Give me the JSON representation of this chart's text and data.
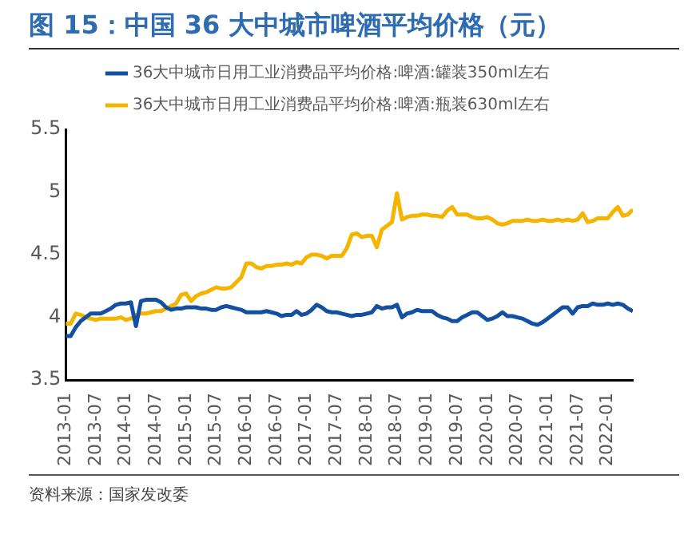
{
  "chart_data": {
    "type": "line",
    "title": "图 15：中国 36 大中城市啤酒平均价格（元）",
    "annotations": [
      "资料来源：国家发改委"
    ],
    "x": [
      "2013-01",
      "2013-02",
      "2013-03",
      "2013-04",
      "2013-05",
      "2013-06",
      "2013-07",
      "2013-08",
      "2013-09",
      "2013-10",
      "2013-11",
      "2013-12",
      "2014-01",
      "2014-02",
      "2014-03",
      "2014-04",
      "2014-05",
      "2014-06",
      "2014-07",
      "2014-08",
      "2014-09",
      "2014-10",
      "2014-11",
      "2014-12",
      "2015-01",
      "2015-02",
      "2015-03",
      "2015-04",
      "2015-05",
      "2015-06",
      "2015-07",
      "2015-08",
      "2015-09",
      "2015-10",
      "2015-11",
      "2015-12",
      "2016-01",
      "2016-02",
      "2016-03",
      "2016-04",
      "2016-05",
      "2016-06",
      "2016-07",
      "2016-08",
      "2016-09",
      "2016-10",
      "2016-11",
      "2016-12",
      "2017-01",
      "2017-02",
      "2017-03",
      "2017-04",
      "2017-05",
      "2017-06",
      "2017-07",
      "2017-08",
      "2017-09",
      "2017-10",
      "2017-11",
      "2017-12",
      "2018-01",
      "2018-02",
      "2018-03",
      "2018-04",
      "2018-05",
      "2018-06",
      "2018-07",
      "2018-08",
      "2018-09",
      "2018-10",
      "2018-11",
      "2018-12",
      "2019-01",
      "2019-02",
      "2019-03",
      "2019-04",
      "2019-05",
      "2019-06",
      "2019-07",
      "2019-08",
      "2019-09",
      "2019-10",
      "2019-11",
      "2019-12",
      "2020-01",
      "2020-02",
      "2020-03",
      "2020-04",
      "2020-05",
      "2020-06",
      "2020-07",
      "2020-08",
      "2020-09",
      "2020-10",
      "2020-11",
      "2020-12",
      "2021-01",
      "2021-02",
      "2021-03",
      "2021-04",
      "2021-05",
      "2021-06",
      "2021-07",
      "2021-08",
      "2021-09",
      "2021-10",
      "2021-11",
      "2021-12",
      "2022-01",
      "2022-02",
      "2022-03",
      "2022-04",
      "2022-05",
      "2022-06"
    ],
    "series": [
      {
        "name": "36大中城市日用工业消费品平均价格:啤酒:罐装350ml左右",
        "color": "#1450a0",
        "values": [
          3.85,
          3.85,
          3.92,
          3.97,
          4.0,
          4.03,
          4.03,
          4.03,
          4.05,
          4.07,
          4.1,
          4.11,
          4.11,
          4.12,
          3.93,
          4.13,
          4.14,
          4.14,
          4.14,
          4.12,
          4.08,
          4.06,
          4.07,
          4.07,
          4.08,
          4.08,
          4.08,
          4.07,
          4.07,
          4.06,
          4.06,
          4.08,
          4.09,
          4.08,
          4.07,
          4.06,
          4.04,
          4.04,
          4.04,
          4.04,
          4.05,
          4.04,
          4.03,
          4.01,
          4.02,
          4.02,
          4.05,
          4.02,
          4.03,
          4.06,
          4.1,
          4.08,
          4.05,
          4.04,
          4.04,
          4.03,
          4.02,
          4.01,
          4.02,
          4.02,
          4.03,
          4.04,
          4.09,
          4.07,
          4.08,
          4.08,
          4.1,
          4.0,
          4.03,
          4.04,
          4.06,
          4.05,
          4.05,
          4.05,
          4.02,
          4.0,
          3.99,
          3.97,
          3.97,
          4.0,
          4.02,
          4.04,
          4.04,
          4.01,
          3.98,
          3.99,
          4.01,
          4.04,
          4.01,
          4.01,
          4.0,
          3.99,
          3.97,
          3.95,
          3.94,
          3.96,
          3.99,
          4.02,
          4.05,
          4.08,
          4.08,
          4.03,
          4.08,
          4.09,
          4.09,
          4.11,
          4.1,
          4.1,
          4.11,
          4.1,
          4.11,
          4.1,
          4.07,
          4.05
        ]
      },
      {
        "name": "36大中城市日用工业消费品平均价格:啤酒:瓶装630ml左右",
        "color": "#f5b400",
        "values": [
          3.95,
          3.95,
          4.03,
          4.02,
          4.0,
          3.99,
          3.98,
          3.99,
          3.99,
          3.99,
          3.99,
          4.0,
          3.98,
          3.99,
          4.02,
          4.03,
          4.03,
          4.04,
          4.05,
          4.05,
          4.07,
          4.09,
          4.11,
          4.18,
          4.19,
          4.13,
          4.17,
          4.19,
          4.2,
          4.22,
          4.24,
          4.23,
          4.23,
          4.24,
          4.28,
          4.32,
          4.43,
          4.43,
          4.4,
          4.39,
          4.41,
          4.41,
          4.42,
          4.42,
          4.43,
          4.42,
          4.44,
          4.43,
          4.48,
          4.5,
          4.5,
          4.49,
          4.47,
          4.49,
          4.49,
          4.49,
          4.55,
          4.66,
          4.67,
          4.64,
          4.65,
          4.65,
          4.56,
          4.7,
          4.73,
          4.76,
          4.99,
          4.78,
          4.8,
          4.81,
          4.81,
          4.82,
          4.82,
          4.81,
          4.81,
          4.8,
          4.85,
          4.88,
          4.82,
          4.82,
          4.82,
          4.8,
          4.79,
          4.79,
          4.8,
          4.78,
          4.75,
          4.74,
          4.75,
          4.77,
          4.77,
          4.77,
          4.78,
          4.77,
          4.77,
          4.78,
          4.77,
          4.77,
          4.78,
          4.77,
          4.78,
          4.77,
          4.78,
          4.83,
          4.76,
          4.77,
          4.79,
          4.79,
          4.79,
          4.84,
          4.88,
          4.81,
          4.82,
          4.86
        ]
      }
    ],
    "xlim": [
      "2013-01",
      "2022-06"
    ],
    "xticks": [
      "2013-01",
      "2013-07",
      "2014-01",
      "2014-07",
      "2015-01",
      "2015-07",
      "2016-01",
      "2016-07",
      "2017-01",
      "2017-07",
      "2018-01",
      "2018-07",
      "2019-01",
      "2019-07",
      "2020-01",
      "2020-07",
      "2021-01",
      "2021-07",
      "2022-01"
    ],
    "ylim": [
      3.5,
      5.5
    ],
    "yticks": [
      3.5,
      4,
      4.5,
      5,
      5.5
    ],
    "grid": false,
    "legend": "top",
    "line_style": "solid",
    "marker": "none"
  }
}
